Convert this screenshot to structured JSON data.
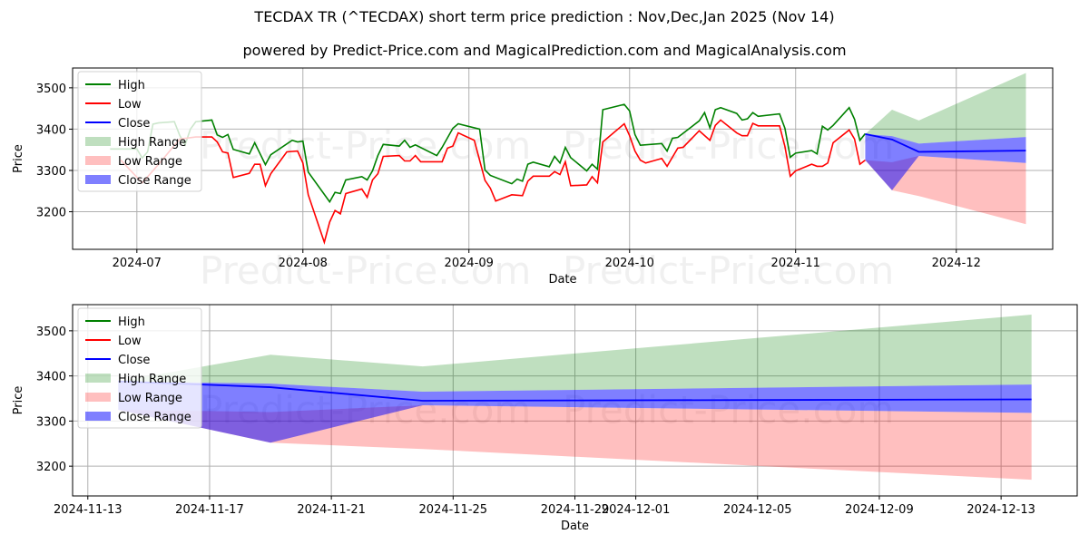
{
  "title": "TECDAX TR (^TECDAX) short term price prediction : Nov,Dec,Jan 2025 (Nov 14)",
  "subtitle": "powered by Predict-Price.com and MagicalPrediction.com and MagicalAnalysis.com",
  "watermarks": [
    "Predict-Price.com",
    "Predict-Price.com"
  ],
  "colors": {
    "high": "#008000",
    "low": "#ff0000",
    "close": "#0000ff",
    "high_range": "rgba(0,128,0,0.25)",
    "low_range": "rgba(255,0,0,0.25)",
    "close_range": "rgba(0,0,255,0.5)"
  },
  "chart_data": [
    {
      "type": "line",
      "panel": "history-and-forecast",
      "xlabel": "Date",
      "ylabel": "Price",
      "xlim": [
        "2024-06-19",
        "2024-12-19"
      ],
      "ylim": [
        3109,
        3548
      ],
      "grid": true,
      "legend_placement": "top-left",
      "legend": [
        "High",
        "Low",
        "Close",
        "High Range",
        "Low Range",
        "Close Range"
      ],
      "xticks": [
        "2024-07",
        "2024-08",
        "2024-09",
        "2024-10",
        "2024-11",
        "2024-12"
      ],
      "yticks": [
        3200,
        3300,
        3400,
        3500
      ],
      "high": [
        [
          "2024-06-26",
          3352
        ],
        [
          "2024-06-28",
          3352
        ],
        [
          "2024-07-01",
          3352
        ],
        [
          "2024-07-02",
          3330
        ],
        [
          "2024-07-03",
          3345
        ],
        [
          "2024-07-04",
          3412
        ],
        [
          "2024-07-05",
          3415
        ],
        [
          "2024-07-08",
          3418
        ],
        [
          "2024-07-09",
          3385
        ],
        [
          "2024-07-10",
          3362
        ],
        [
          "2024-07-11",
          3400
        ],
        [
          "2024-07-12",
          3418
        ],
        [
          "2024-07-15",
          3422
        ],
        [
          "2024-07-16",
          3386
        ],
        [
          "2024-07-17",
          3380
        ],
        [
          "2024-07-18",
          3387
        ],
        [
          "2024-07-19",
          3351
        ],
        [
          "2024-07-22",
          3340
        ],
        [
          "2024-07-23",
          3367
        ],
        [
          "2024-07-25",
          3314
        ],
        [
          "2024-07-26",
          3338
        ],
        [
          "2024-07-30",
          3373
        ],
        [
          "2024-07-31",
          3369
        ],
        [
          "2024-08-01",
          3371
        ],
        [
          "2024-08-02",
          3296
        ],
        [
          "2024-08-06",
          3224
        ],
        [
          "2024-08-07",
          3247
        ],
        [
          "2024-08-08",
          3244
        ],
        [
          "2024-08-09",
          3277
        ],
        [
          "2024-08-12",
          3285
        ],
        [
          "2024-08-13",
          3277
        ],
        [
          "2024-08-14",
          3299
        ],
        [
          "2024-08-15",
          3336
        ],
        [
          "2024-08-16",
          3363
        ],
        [
          "2024-08-19",
          3359
        ],
        [
          "2024-08-20",
          3373
        ],
        [
          "2024-08-21",
          3356
        ],
        [
          "2024-08-22",
          3362
        ],
        [
          "2024-08-26",
          3336
        ],
        [
          "2024-08-27",
          3356
        ],
        [
          "2024-08-29",
          3402
        ],
        [
          "2024-08-30",
          3413
        ],
        [
          "2024-09-03",
          3400
        ],
        [
          "2024-09-04",
          3301
        ],
        [
          "2024-09-05",
          3288
        ],
        [
          "2024-09-09",
          3268
        ],
        [
          "2024-09-10",
          3279
        ],
        [
          "2024-09-11",
          3274
        ],
        [
          "2024-09-12",
          3315
        ],
        [
          "2024-09-13",
          3320
        ],
        [
          "2024-09-16",
          3309
        ],
        [
          "2024-09-17",
          3334
        ],
        [
          "2024-09-18",
          3318
        ],
        [
          "2024-09-19",
          3356
        ],
        [
          "2024-09-20",
          3331
        ],
        [
          "2024-09-23",
          3299
        ],
        [
          "2024-09-24",
          3315
        ],
        [
          "2024-09-25",
          3303
        ],
        [
          "2024-09-26",
          3447
        ],
        [
          "2024-09-30",
          3460
        ],
        [
          "2024-10-01",
          3444
        ],
        [
          "2024-10-02",
          3387
        ],
        [
          "2024-10-03",
          3361
        ],
        [
          "2024-10-07",
          3365
        ],
        [
          "2024-10-08",
          3347
        ],
        [
          "2024-10-09",
          3378
        ],
        [
          "2024-10-10",
          3380
        ],
        [
          "2024-10-14",
          3420
        ],
        [
          "2024-10-15",
          3440
        ],
        [
          "2024-10-16",
          3403
        ],
        [
          "2024-10-17",
          3447
        ],
        [
          "2024-10-18",
          3452
        ],
        [
          "2024-10-21",
          3438
        ],
        [
          "2024-10-22",
          3422
        ],
        [
          "2024-10-23",
          3425
        ],
        [
          "2024-10-24",
          3440
        ],
        [
          "2024-10-25",
          3431
        ],
        [
          "2024-10-29",
          3437
        ],
        [
          "2024-10-30",
          3402
        ],
        [
          "2024-10-31",
          3332
        ],
        [
          "2024-11-01",
          3342
        ],
        [
          "2024-11-04",
          3348
        ],
        [
          "2024-11-05",
          3340
        ],
        [
          "2024-11-06",
          3407
        ],
        [
          "2024-11-07",
          3398
        ],
        [
          "2024-11-08",
          3409
        ],
        [
          "2024-11-11",
          3452
        ],
        [
          "2024-11-12",
          3424
        ],
        [
          "2024-11-13",
          3373
        ],
        [
          "2024-11-14",
          3389
        ]
      ],
      "low": [
        [
          "2024-06-28",
          3325
        ],
        [
          "2024-07-02",
          3270
        ],
        [
          "2024-07-05",
          3314
        ],
        [
          "2024-07-09",
          3376
        ],
        [
          "2024-07-12",
          3381
        ],
        [
          "2024-07-15",
          3381
        ],
        [
          "2024-07-16",
          3369
        ],
        [
          "2024-07-17",
          3345
        ],
        [
          "2024-07-18",
          3342
        ],
        [
          "2024-07-19",
          3283
        ],
        [
          "2024-07-22",
          3293
        ],
        [
          "2024-07-23",
          3315
        ],
        [
          "2024-07-24",
          3315
        ],
        [
          "2024-07-25",
          3263
        ],
        [
          "2024-07-26",
          3292
        ],
        [
          "2024-07-29",
          3345
        ],
        [
          "2024-07-31",
          3347
        ],
        [
          "2024-08-01",
          3318
        ],
        [
          "2024-08-02",
          3241
        ],
        [
          "2024-08-05",
          3126
        ],
        [
          "2024-08-06",
          3175
        ],
        [
          "2024-08-07",
          3203
        ],
        [
          "2024-08-08",
          3195
        ],
        [
          "2024-08-09",
          3244
        ],
        [
          "2024-08-12",
          3255
        ],
        [
          "2024-08-13",
          3235
        ],
        [
          "2024-08-14",
          3277
        ],
        [
          "2024-08-15",
          3292
        ],
        [
          "2024-08-16",
          3334
        ],
        [
          "2024-08-19",
          3336
        ],
        [
          "2024-08-20",
          3323
        ],
        [
          "2024-08-21",
          3323
        ],
        [
          "2024-08-22",
          3336
        ],
        [
          "2024-08-23",
          3321
        ],
        [
          "2024-08-27",
          3321
        ],
        [
          "2024-08-28",
          3354
        ],
        [
          "2024-08-29",
          3359
        ],
        [
          "2024-08-30",
          3391
        ],
        [
          "2024-09-02",
          3373
        ],
        [
          "2024-09-04",
          3276
        ],
        [
          "2024-09-05",
          3257
        ],
        [
          "2024-09-06",
          3226
        ],
        [
          "2024-09-09",
          3241
        ],
        [
          "2024-09-11",
          3239
        ],
        [
          "2024-09-12",
          3274
        ],
        [
          "2024-09-13",
          3286
        ],
        [
          "2024-09-16",
          3286
        ],
        [
          "2024-09-17",
          3297
        ],
        [
          "2024-09-18",
          3290
        ],
        [
          "2024-09-19",
          3321
        ],
        [
          "2024-09-20",
          3263
        ],
        [
          "2024-09-23",
          3265
        ],
        [
          "2024-09-24",
          3285
        ],
        [
          "2024-09-25",
          3270
        ],
        [
          "2024-09-26",
          3369
        ],
        [
          "2024-09-30",
          3413
        ],
        [
          "2024-10-01",
          3384
        ],
        [
          "2024-10-02",
          3347
        ],
        [
          "2024-10-03",
          3325
        ],
        [
          "2024-10-04",
          3318
        ],
        [
          "2024-10-07",
          3329
        ],
        [
          "2024-10-08",
          3310
        ],
        [
          "2024-10-10",
          3354
        ],
        [
          "2024-10-11",
          3356
        ],
        [
          "2024-10-14",
          3396
        ],
        [
          "2024-10-16",
          3373
        ],
        [
          "2024-10-17",
          3409
        ],
        [
          "2024-10-18",
          3422
        ],
        [
          "2024-10-21",
          3391
        ],
        [
          "2024-10-22",
          3384
        ],
        [
          "2024-10-23",
          3384
        ],
        [
          "2024-10-24",
          3414
        ],
        [
          "2024-10-25",
          3408
        ],
        [
          "2024-10-29",
          3408
        ],
        [
          "2024-10-30",
          3358
        ],
        [
          "2024-10-31",
          3286
        ],
        [
          "2024-11-01",
          3299
        ],
        [
          "2024-11-04",
          3315
        ],
        [
          "2024-11-05",
          3310
        ],
        [
          "2024-11-06",
          3310
        ],
        [
          "2024-11-07",
          3318
        ],
        [
          "2024-11-08",
          3367
        ],
        [
          "2024-11-11",
          3398
        ],
        [
          "2024-11-12",
          3376
        ],
        [
          "2024-11-13",
          3315
        ],
        [
          "2024-11-14",
          3325
        ]
      ],
      "forecast": {
        "dates": [
          "2024-11-14",
          "2024-11-19",
          "2024-11-24",
          "2024-12-14"
        ],
        "close": [
          3388,
          3375,
          3345,
          3348
        ],
        "high_range": [
          [
            3388,
            3388
          ],
          [
            3383,
            3447
          ],
          [
            3365,
            3421
          ],
          [
            3381,
            3536
          ]
        ],
        "low_range": [
          [
            3325,
            3325
          ],
          [
            3252,
            3320
          ],
          [
            3238,
            3335
          ],
          [
            3170,
            3318
          ]
        ],
        "close_range": [
          [
            3325,
            3388
          ],
          [
            3252,
            3383
          ],
          [
            3335,
            3365
          ],
          [
            3318,
            3381
          ]
        ]
      }
    },
    {
      "type": "line",
      "panel": "forecast-zoom",
      "xlabel": "Date",
      "ylabel": "Price",
      "xlim": [
        "2024-11-12.5",
        "2024-12-15.5"
      ],
      "ylim": [
        3134,
        3558
      ],
      "grid": true,
      "legend_placement": "top-left",
      "legend": [
        "High",
        "Low",
        "Close",
        "High Range",
        "Low Range",
        "Close Range"
      ],
      "xticks": [
        "2024-11-13",
        "2024-11-17",
        "2024-11-21",
        "2024-11-25",
        "2024-11-29",
        "2024-12-01",
        "2024-12-05",
        "2024-12-09",
        "2024-12-13"
      ],
      "yticks": [
        3200,
        3300,
        3400,
        3500
      ]
    }
  ]
}
